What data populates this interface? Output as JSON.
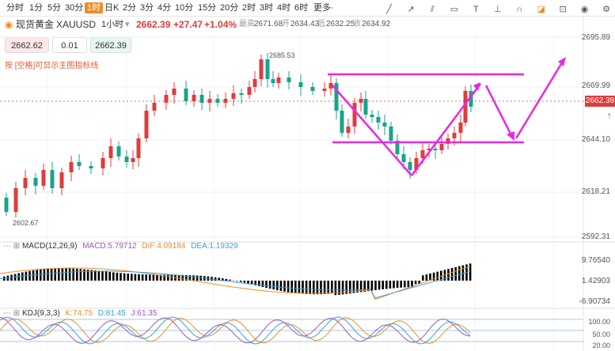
{
  "toolbar": {
    "timeframes": [
      "分时",
      "1分",
      "5分",
      "30分",
      "1时",
      "日K",
      "2分",
      "3分",
      "4分",
      "10分",
      "15分",
      "20分",
      "2时",
      "3时",
      "4时",
      "6时",
      "更多·"
    ],
    "active_index": 4
  },
  "symbol": {
    "name": "现货黄金",
    "code": "XAUUSD",
    "interval": "1小时",
    "price": "2662.39",
    "change": "+27.47",
    "change_pct": "+1.04%",
    "high_label": "最高",
    "high": "2671.68",
    "open_label": "开",
    "open": "2634.43",
    "low_label": "低",
    "low": "2632.25",
    "close_label": "收",
    "close": "2634.92"
  },
  "controls": {
    "sell": "2662.62",
    "step": "0.01",
    "buy": "2662.39"
  },
  "hint": "按 [空格]可显示主图指标线",
  "price_axis": [
    "2695.89",
    "2669.99",
    "2644.10",
    "2618.21",
    "2592.31"
  ],
  "current_price_tag": "2662.39",
  "annotations": {
    "high_mark": "2685.53",
    "low_mark": "2602.67"
  },
  "macd": {
    "label": "MACD(12,26,9)",
    "macd": "MACD:5.79712",
    "dif": "DIF:4.09184",
    "dea": "DEA:1.19329",
    "axis": [
      "9.76540",
      "1.42903",
      "-6.90734"
    ]
  },
  "kdj": {
    "label": "KDJ(9,3,3)",
    "k": "K:74.75",
    "d": "D:81.45",
    "j": "J:61.35",
    "axis": [
      "100.00",
      "50.00",
      "20.00"
    ]
  },
  "colors": {
    "up": "#e03c3c",
    "down": "#1aa38a",
    "draw": "#e629e6",
    "accent": "#f08c28"
  },
  "icons": [
    "draw-line-icon",
    "ray-icon",
    "channel-icon",
    "rect-icon",
    "text-icon",
    "measure-icon",
    "magnet-icon",
    "eraser-icon",
    "lock-icon",
    "eye-icon",
    "settings-icon"
  ]
}
